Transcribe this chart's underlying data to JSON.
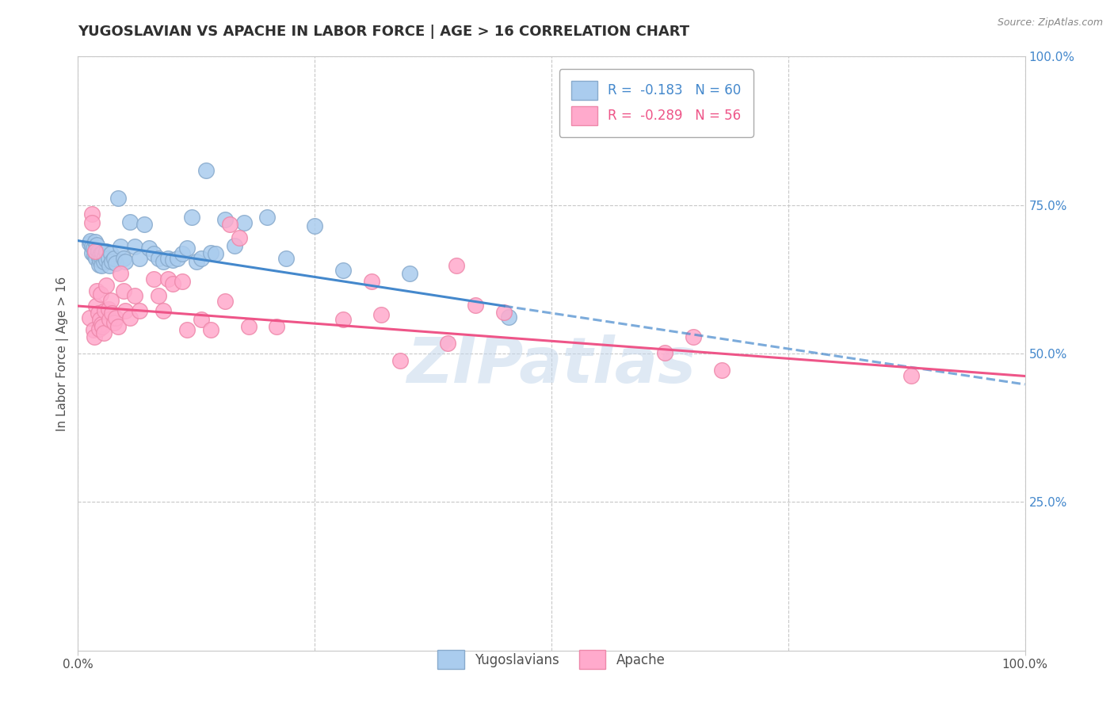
{
  "title": "YUGOSLAVIAN VS APACHE IN LABOR FORCE | AGE > 16 CORRELATION CHART",
  "source": "Source: ZipAtlas.com",
  "ylabel": "In Labor Force | Age > 16",
  "xlim": [
    0.0,
    1.0
  ],
  "ylim": [
    0.0,
    1.0
  ],
  "grid_yticks": [
    0.25,
    0.5,
    0.75,
    1.0
  ],
  "grid_xticks": [
    0.0,
    0.25,
    0.5,
    0.75,
    1.0
  ],
  "blue_scatter": [
    [
      0.012,
      0.685
    ],
    [
      0.013,
      0.69
    ],
    [
      0.015,
      0.68
    ],
    [
      0.015,
      0.67
    ],
    [
      0.016,
      0.678
    ],
    [
      0.017,
      0.665
    ],
    [
      0.018,
      0.688
    ],
    [
      0.018,
      0.672
    ],
    [
      0.019,
      0.66
    ],
    [
      0.02,
      0.683
    ],
    [
      0.021,
      0.672
    ],
    [
      0.022,
      0.662
    ],
    [
      0.022,
      0.65
    ],
    [
      0.023,
      0.658
    ],
    [
      0.024,
      0.668
    ],
    [
      0.025,
      0.66
    ],
    [
      0.025,
      0.648
    ],
    [
      0.026,
      0.67
    ],
    [
      0.027,
      0.655
    ],
    [
      0.028,
      0.663
    ],
    [
      0.03,
      0.672
    ],
    [
      0.03,
      0.658
    ],
    [
      0.032,
      0.66
    ],
    [
      0.033,
      0.648
    ],
    [
      0.035,
      0.668
    ],
    [
      0.036,
      0.655
    ],
    [
      0.038,
      0.66
    ],
    [
      0.04,
      0.652
    ],
    [
      0.042,
      0.762
    ],
    [
      0.045,
      0.68
    ],
    [
      0.048,
      0.66
    ],
    [
      0.05,
      0.655
    ],
    [
      0.055,
      0.722
    ],
    [
      0.06,
      0.68
    ],
    [
      0.065,
      0.66
    ],
    [
      0.07,
      0.718
    ],
    [
      0.075,
      0.678
    ],
    [
      0.08,
      0.668
    ],
    [
      0.085,
      0.66
    ],
    [
      0.09,
      0.655
    ],
    [
      0.095,
      0.66
    ],
    [
      0.1,
      0.658
    ],
    [
      0.105,
      0.66
    ],
    [
      0.11,
      0.668
    ],
    [
      0.115,
      0.678
    ],
    [
      0.12,
      0.73
    ],
    [
      0.125,
      0.655
    ],
    [
      0.13,
      0.66
    ],
    [
      0.135,
      0.808
    ],
    [
      0.14,
      0.67
    ],
    [
      0.145,
      0.668
    ],
    [
      0.155,
      0.725
    ],
    [
      0.165,
      0.682
    ],
    [
      0.175,
      0.72
    ],
    [
      0.2,
      0.73
    ],
    [
      0.22,
      0.66
    ],
    [
      0.25,
      0.715
    ],
    [
      0.28,
      0.64
    ],
    [
      0.35,
      0.635
    ],
    [
      0.455,
      0.562
    ]
  ],
  "pink_scatter": [
    [
      0.012,
      0.56
    ],
    [
      0.015,
      0.735
    ],
    [
      0.015,
      0.72
    ],
    [
      0.016,
      0.54
    ],
    [
      0.017,
      0.528
    ],
    [
      0.018,
      0.672
    ],
    [
      0.019,
      0.58
    ],
    [
      0.02,
      0.605
    ],
    [
      0.021,
      0.568
    ],
    [
      0.022,
      0.542
    ],
    [
      0.023,
      0.558
    ],
    [
      0.024,
      0.6
    ],
    [
      0.025,
      0.55
    ],
    [
      0.026,
      0.545
    ],
    [
      0.027,
      0.535
    ],
    [
      0.028,
      0.572
    ],
    [
      0.03,
      0.615
    ],
    [
      0.032,
      0.575
    ],
    [
      0.033,
      0.558
    ],
    [
      0.035,
      0.59
    ],
    [
      0.036,
      0.568
    ],
    [
      0.038,
      0.552
    ],
    [
      0.04,
      0.56
    ],
    [
      0.042,
      0.545
    ],
    [
      0.045,
      0.635
    ],
    [
      0.048,
      0.605
    ],
    [
      0.05,
      0.572
    ],
    [
      0.055,
      0.56
    ],
    [
      0.06,
      0.598
    ],
    [
      0.065,
      0.572
    ],
    [
      0.08,
      0.625
    ],
    [
      0.085,
      0.598
    ],
    [
      0.09,
      0.572
    ],
    [
      0.095,
      0.625
    ],
    [
      0.1,
      0.618
    ],
    [
      0.11,
      0.622
    ],
    [
      0.115,
      0.54
    ],
    [
      0.13,
      0.558
    ],
    [
      0.14,
      0.54
    ],
    [
      0.155,
      0.588
    ],
    [
      0.16,
      0.718
    ],
    [
      0.17,
      0.695
    ],
    [
      0.18,
      0.545
    ],
    [
      0.21,
      0.545
    ],
    [
      0.28,
      0.558
    ],
    [
      0.31,
      0.622
    ],
    [
      0.32,
      0.565
    ],
    [
      0.34,
      0.488
    ],
    [
      0.39,
      0.518
    ],
    [
      0.4,
      0.648
    ],
    [
      0.42,
      0.582
    ],
    [
      0.45,
      0.57
    ],
    [
      0.62,
      0.502
    ],
    [
      0.65,
      0.528
    ],
    [
      0.68,
      0.472
    ],
    [
      0.88,
      0.462
    ]
  ],
  "blue_line_solid": [
    [
      0.0,
      0.69
    ],
    [
      0.45,
      0.58
    ]
  ],
  "blue_line_dashed": [
    [
      0.45,
      0.58
    ],
    [
      1.0,
      0.448
    ]
  ],
  "pink_line": [
    [
      0.0,
      0.58
    ],
    [
      1.0,
      0.462
    ]
  ],
  "grid_color": "#c8c8c8",
  "scatter_blue_fill": "#aaccee",
  "scatter_blue_edge": "#88aacc",
  "scatter_pink_fill": "#ffaacc",
  "scatter_pink_edge": "#ee88aa",
  "line_blue": "#4488cc",
  "line_pink": "#ee5588",
  "bg_color": "#ffffff",
  "watermark_color": "#c8d8e8",
  "ytick_color": "#4488cc",
  "title_color": "#303030",
  "source_color": "#888888",
  "legend1_blue_r": "R = ",
  "legend1_blue_val": " -0.183",
  "legend1_blue_n": "  N = 60",
  "legend1_pink_r": "R = ",
  "legend1_pink_val": " -0.289",
  "legend1_pink_n": "  N = 56"
}
